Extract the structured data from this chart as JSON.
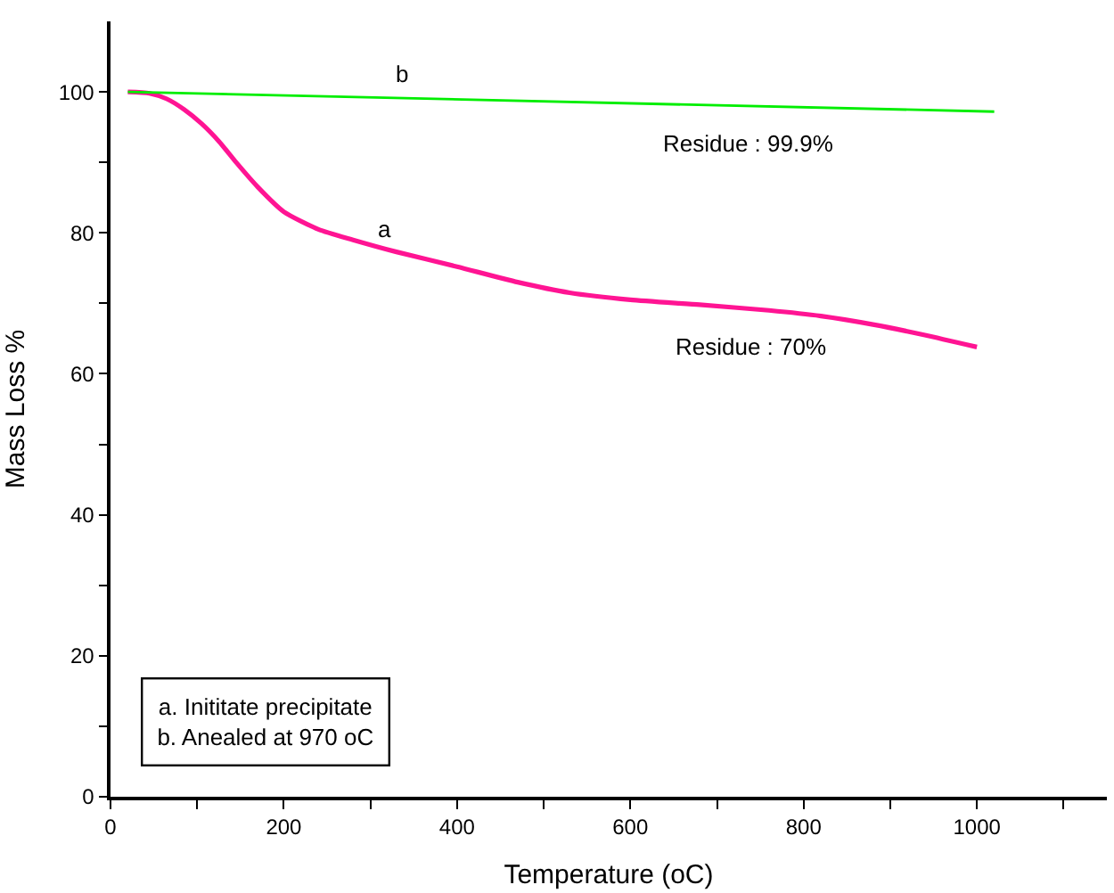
{
  "chart_data": {
    "type": "line",
    "xlabel": "Temperature (oC)",
    "ylabel": "Mass Loss %",
    "xlim": [
      0,
      1150
    ],
    "ylim": [
      0,
      110
    ],
    "xticks": [
      0,
      {
        "value": 100,
        "label": null
      },
      200,
      {
        "value": 300,
        "label": null
      },
      400,
      {
        "value": 500,
        "label": null
      },
      600,
      {
        "value": 700,
        "label": null
      },
      800,
      {
        "value": 900,
        "label": null
      },
      1000,
      {
        "value": 1100,
        "label": null
      }
    ],
    "yticks": [
      0,
      {
        "value": 10,
        "label": null
      },
      20,
      {
        "value": 30,
        "label": null
      },
      40,
      {
        "value": 50,
        "label": null
      },
      60,
      {
        "value": 70,
        "label": null
      },
      80,
      {
        "value": 90,
        "label": null
      },
      100
    ],
    "marker": "none",
    "line_style": "solid",
    "series": [
      {
        "color": "#ff1493",
        "x": [
          20,
          45,
          65,
          85,
          105,
          125,
          145,
          170,
          200,
          240,
          280,
          330,
          400,
          470,
          530,
          600,
          680,
          760,
          820,
          880,
          940,
          1000
        ],
        "values": [
          100,
          99.8,
          99,
          97.5,
          95.5,
          93,
          90,
          86.5,
          83,
          80.5,
          79,
          77.3,
          75.2,
          73,
          71.5,
          70.5,
          69.8,
          69,
          68.2,
          67,
          65.5,
          63.8
        ]
      },
      {
        "color": "#00ee00",
        "x": [
          20,
          1020
        ],
        "values": [
          100,
          97.2
        ]
      }
    ],
    "annotations": [
      "a",
      "b",
      "Residue : 99.9%",
      "Residue : 70%",
      "a. Inititate precipitate",
      "b. Anealed at 970 oC"
    ]
  }
}
